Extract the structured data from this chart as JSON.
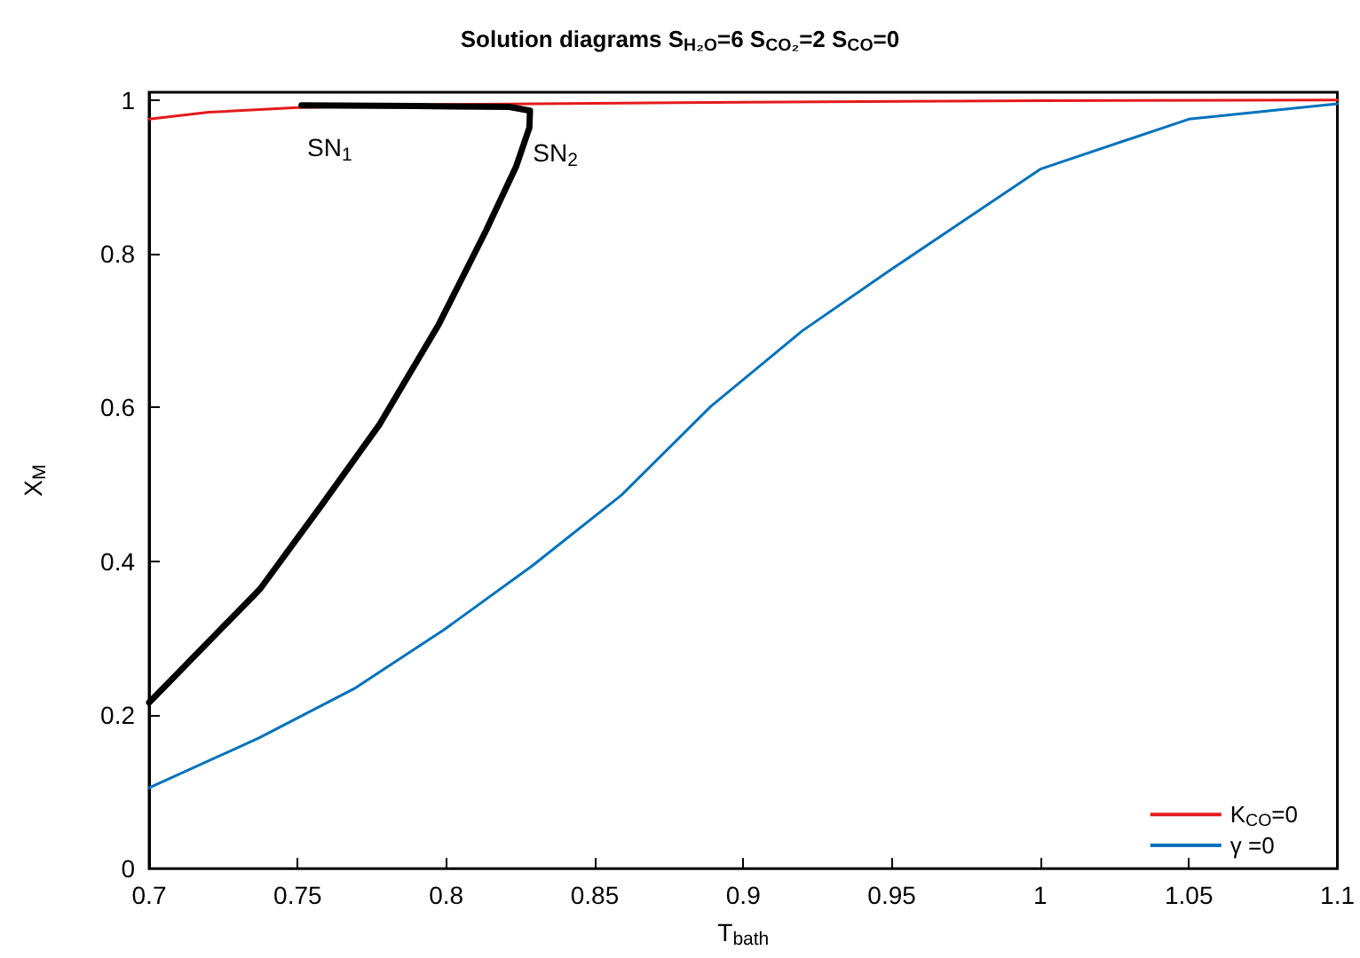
{
  "chart_data": {
    "type": "line",
    "title": "Solution diagrams S$_{H₂O}$=6 S$_{CO₂}$=2 S$_{CO}$=0",
    "xlabel": "T$_{bath}$",
    "ylabel": "X$_{M}$",
    "xlim": [
      0.7,
      1.1
    ],
    "xticks": [
      0.7,
      0.75,
      0.8,
      0.85,
      0.9,
      0.95,
      1,
      1.05,
      1.1
    ],
    "ylim": [
      0,
      1.01
    ],
    "yticks": [
      0,
      0.2,
      0.4,
      0.6,
      0.8,
      1
    ],
    "legend": "bottom right",
    "annotations": [
      {
        "text": "SN$_{1}$",
        "x": 0.752,
        "y": 0.993
      },
      {
        "text": "SN$_{2}$",
        "x": 0.828,
        "y": 0.986
      }
    ],
    "series": [
      {
        "color": "#000000",
        "x": [
          0.7,
          0.7374,
          0.7577,
          0.7776,
          0.7975,
          0.8134,
          0.8236,
          0.828,
          0.8282,
          0.8212,
          0.79,
          0.7513
        ],
        "values": [
          0.216,
          0.364,
          0.471,
          0.578,
          0.708,
          0.83,
          0.914,
          0.964,
          0.986,
          0.991,
          0.992,
          0.993
        ]
      },
      {
        "name": "K$_{CO}$=0",
        "color": "#e41a1c",
        "x": [
          0.7,
          0.72,
          0.75,
          0.8,
          0.9,
          1,
          1.1
        ],
        "values": [
          0.975,
          0.984,
          0.99,
          0.994,
          0.997,
          0.999,
          1.0
        ]
      },
      {
        "name": "γ =0",
        "color": "#0072bd",
        "x": [
          0.7,
          0.737,
          0.769,
          0.799,
          0.829,
          0.859,
          0.889,
          0.92,
          0.95,
          1,
          1.05,
          1.1
        ],
        "values": [
          0.105,
          0.17,
          0.234,
          0.31,
          0.394,
          0.486,
          0.601,
          0.7,
          0.78,
          0.91,
          0.975,
          0.995
        ]
      }
    ]
  }
}
